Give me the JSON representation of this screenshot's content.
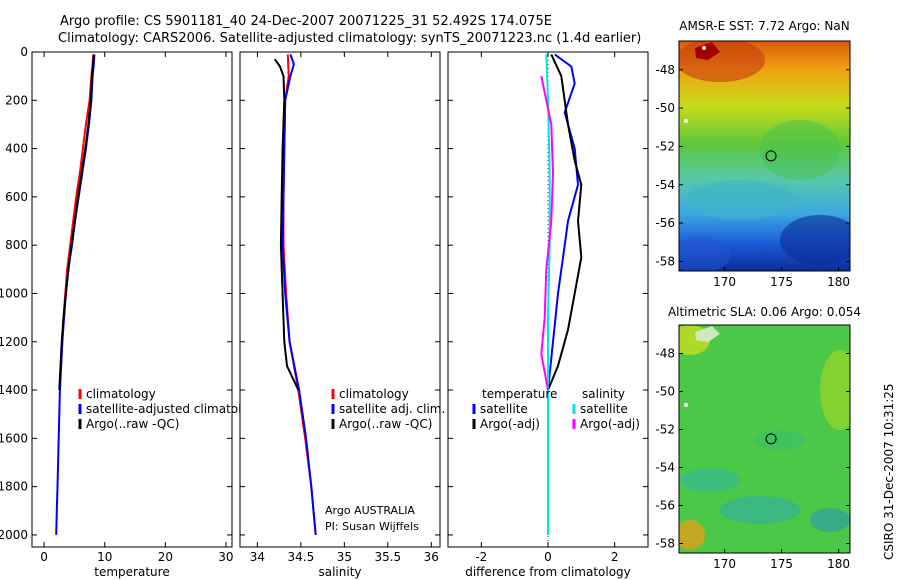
{
  "header": {
    "line1": "Argo profile: CS 5901181_40 24-Dec-2007 20071225_31 52.492S 174.075E",
    "line2": "Climatology: CARS2006. Satellite-adjusted climatology: synTS_20071223.nc (1.4d earlier)"
  },
  "footer": {
    "program": "Argo AUSTRALIA",
    "pi": "PI: Susan Wijffels",
    "stamp": "CSIRO 31-Dec-2007 10:31:25"
  },
  "colors": {
    "climatology": "#ff0000",
    "satellite": "#0000ff",
    "argo": "#000000",
    "sal_satellite": "#00e5e5",
    "sal_argo": "#ff00ff"
  },
  "chart_data": [
    {
      "type": "line",
      "id": "temperature",
      "xlabel": "temperature",
      "ylabel": "",
      "xlim": [
        -2,
        31
      ],
      "ylim": [
        0,
        2050
      ],
      "y_reversed": true,
      "xticks": [
        0,
        10,
        20,
        30
      ],
      "yticks": [
        0,
        200,
        400,
        600,
        800,
        1000,
        1200,
        1400,
        1600,
        1800,
        2000
      ],
      "legend_entries": [
        "climatology",
        "satellite-adjusted climatology",
        "Argo(..raw -QC)"
      ],
      "legend_placement": "lower-right",
      "series": [
        {
          "name": "climatology",
          "color": "#ff0000",
          "points": [
            [
              8.1,
              10
            ],
            [
              8.0,
              50
            ],
            [
              7.8,
              100
            ],
            [
              7.5,
              200
            ],
            [
              6.9,
              300
            ],
            [
              6.4,
              400
            ],
            [
              5.9,
              500
            ],
            [
              5.3,
              600
            ],
            [
              4.8,
              700
            ],
            [
              4.3,
              800
            ],
            [
              3.8,
              900
            ],
            [
              3.5,
              1000
            ],
            [
              3.2,
              1100
            ],
            [
              3.0,
              1200
            ],
            [
              2.8,
              1300
            ],
            [
              2.6,
              1400
            ]
          ]
        },
        {
          "name": "satellite-adjusted climatology",
          "color": "#0000ff",
          "points": [
            [
              8.3,
              10
            ],
            [
              8.2,
              50
            ],
            [
              8.0,
              100
            ],
            [
              7.8,
              200
            ],
            [
              7.4,
              300
            ],
            [
              6.9,
              400
            ],
            [
              6.3,
              500
            ],
            [
              5.7,
              600
            ],
            [
              5.1,
              700
            ],
            [
              4.6,
              800
            ],
            [
              4.0,
              900
            ],
            [
              3.6,
              1000
            ],
            [
              3.3,
              1100
            ],
            [
              3.0,
              1200
            ],
            [
              2.8,
              1300
            ],
            [
              2.6,
              1400
            ],
            [
              2.5,
              1500
            ],
            [
              2.4,
              1600
            ],
            [
              2.3,
              1700
            ],
            [
              2.2,
              1800
            ],
            [
              2.1,
              1900
            ],
            [
              2.0,
              2000
            ]
          ]
        },
        {
          "name": "Argo(..raw -QC)",
          "color": "#000000",
          "points": [
            [
              8.2,
              10
            ],
            [
              8.1,
              50
            ],
            [
              7.9,
              100
            ],
            [
              7.7,
              200
            ],
            [
              7.3,
              300
            ],
            [
              6.8,
              400
            ],
            [
              6.2,
              500
            ],
            [
              5.6,
              600
            ],
            [
              5.1,
              700
            ],
            [
              4.5,
              800
            ],
            [
              4.0,
              900
            ],
            [
              3.6,
              1000
            ],
            [
              3.2,
              1100
            ],
            [
              2.9,
              1200
            ],
            [
              2.7,
              1300
            ],
            [
              2.5,
              1400
            ]
          ]
        }
      ]
    },
    {
      "type": "line",
      "id": "salinity",
      "xlabel": "salinity",
      "ylabel": "",
      "xlim": [
        33.8,
        36.1
      ],
      "ylim": [
        0,
        2050
      ],
      "y_reversed": true,
      "xticks": [
        34,
        34.5,
        35,
        35.5,
        36
      ],
      "yticks": [
        0,
        200,
        400,
        600,
        800,
        1000,
        1200,
        1400,
        1600,
        1800,
        2000
      ],
      "legend_entries": [
        "climatology",
        "satellite adj. clim.",
        "Argo(..raw -QC)"
      ],
      "legend_placement": "lower-right",
      "series": [
        {
          "name": "climatology",
          "color": "#ff0000",
          "points": [
            [
              34.35,
              10
            ],
            [
              34.36,
              100
            ],
            [
              34.32,
              200
            ],
            [
              34.31,
              400
            ],
            [
              34.3,
              600
            ],
            [
              34.3,
              800
            ],
            [
              34.33,
              1000
            ],
            [
              34.37,
              1200
            ],
            [
              34.47,
              1400
            ],
            [
              34.55,
              1600
            ],
            [
              34.62,
              1800
            ],
            [
              34.67,
              2000
            ]
          ]
        },
        {
          "name": "satellite adj. clim.",
          "color": "#0000ff",
          "points": [
            [
              34.38,
              10
            ],
            [
              34.42,
              50
            ],
            [
              34.38,
              100
            ],
            [
              34.32,
              200
            ],
            [
              34.31,
              400
            ],
            [
              34.3,
              600
            ],
            [
              34.29,
              800
            ],
            [
              34.32,
              1000
            ],
            [
              34.37,
              1200
            ],
            [
              34.48,
              1400
            ],
            [
              34.56,
              1600
            ],
            [
              34.62,
              1800
            ],
            [
              34.67,
              2000
            ]
          ]
        },
        {
          "name": "Argo(..raw -QC)",
          "color": "#000000",
          "points": [
            [
              34.2,
              30
            ],
            [
              34.26,
              60
            ],
            [
              34.3,
              100
            ],
            [
              34.31,
              200
            ],
            [
              34.29,
              400
            ],
            [
              34.28,
              600
            ],
            [
              34.27,
              800
            ],
            [
              34.29,
              1000
            ],
            [
              34.31,
              1200
            ],
            [
              34.34,
              1300
            ],
            [
              34.47,
              1400
            ]
          ]
        }
      ]
    },
    {
      "type": "line",
      "id": "difference",
      "xlabel": "difference from climatology",
      "ylabel": "",
      "xlim": [
        -3,
        3
      ],
      "ylim": [
        0,
        2050
      ],
      "y_reversed": true,
      "xticks": [
        -2,
        0,
        2
      ],
      "yticks": [
        0,
        200,
        400,
        600,
        800,
        1000,
        1200,
        1400,
        1600,
        1800,
        2000
      ],
      "legend_groups": [
        "temperature",
        "salinity"
      ],
      "legend_entries": [
        "satellite",
        "Argo(-adj)",
        "satellite",
        "Argo(-adj)"
      ],
      "legend_placement": "lower-center",
      "series": [
        {
          "name": "temperature satellite",
          "color": "#0000ff",
          "points": [
            [
              0.2,
              10
            ],
            [
              0.7,
              60
            ],
            [
              0.8,
              130
            ],
            [
              0.5,
              250
            ],
            [
              0.8,
              400
            ],
            [
              0.9,
              550
            ],
            [
              0.6,
              700
            ],
            [
              0.5,
              800
            ],
            [
              0.3,
              1000
            ],
            [
              0.15,
              1200
            ],
            [
              0.0,
              1400
            ],
            [
              0.0,
              1600
            ],
            [
              0.0,
              1800
            ],
            [
              0.0,
              2000
            ]
          ]
        },
        {
          "name": "temperature Argo(-adj)",
          "color": "#000000",
          "points": [
            [
              0.1,
              10
            ],
            [
              0.4,
              100
            ],
            [
              0.6,
              300
            ],
            [
              0.8,
              450
            ],
            [
              1.0,
              550
            ],
            [
              0.9,
              700
            ],
            [
              1.0,
              850
            ],
            [
              0.8,
              1000
            ],
            [
              0.6,
              1150
            ],
            [
              0.3,
              1300
            ],
            [
              0.0,
              1400
            ]
          ]
        },
        {
          "name": "salinity satellite",
          "color": "#00e5e5",
          "points": [
            [
              -0.05,
              10
            ],
            [
              0.0,
              200
            ],
            [
              0.05,
              500
            ],
            [
              0.05,
              800
            ],
            [
              0.0,
              1100
            ],
            [
              0.0,
              1400
            ],
            [
              0.0,
              1700
            ],
            [
              0.0,
              2000
            ]
          ]
        },
        {
          "name": "salinity Argo(-adj)",
          "color": "#ff00ff",
          "points": [
            [
              -0.2,
              100
            ],
            [
              0.1,
              300
            ],
            [
              0.15,
              500
            ],
            [
              0.1,
              700
            ],
            [
              -0.05,
              900
            ],
            [
              -0.1,
              1100
            ],
            [
              -0.2,
              1250
            ],
            [
              0.0,
              1400
            ]
          ]
        }
      ]
    },
    {
      "type": "heatmap",
      "id": "sst-map",
      "title": "AMSR-E SST: 7.72 Argo: NaN",
      "xlim": [
        166,
        181
      ],
      "ylim": [
        -58.5,
        -46.5
      ],
      "xticks": [
        170,
        175,
        180
      ],
      "yticks": [
        -48,
        -50,
        -52,
        -54,
        -56,
        -58
      ],
      "marker": {
        "lon": 174.075,
        "lat": -52.492
      }
    },
    {
      "type": "heatmap",
      "id": "sla-map",
      "title": "Altimetric SLA: 0.06 Argo: 0.054",
      "xlim": [
        166,
        181
      ],
      "ylim": [
        -58.5,
        -46.5
      ],
      "xticks": [
        170,
        175,
        180
      ],
      "yticks": [
        -48,
        -50,
        -52,
        -54,
        -56,
        -58
      ],
      "marker": {
        "lon": 174.075,
        "lat": -52.492
      }
    }
  ]
}
